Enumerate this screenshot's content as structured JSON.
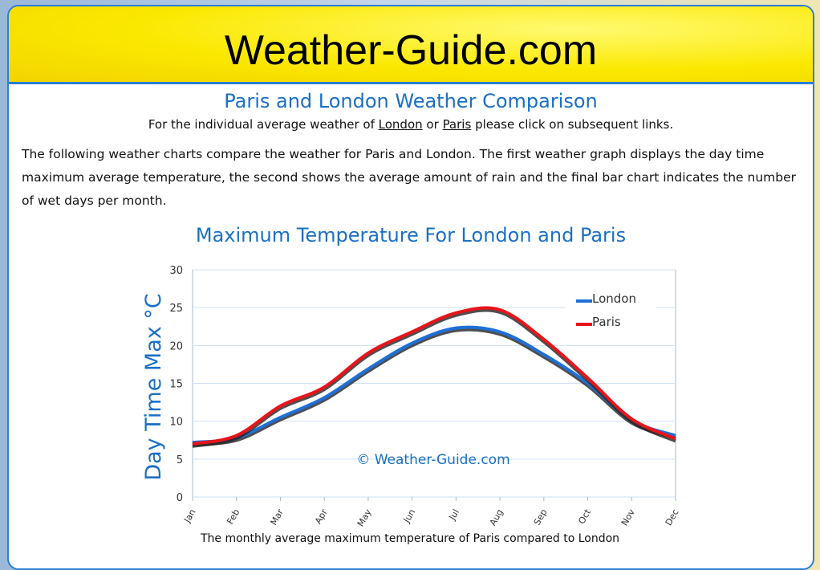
{
  "header": {
    "title": "Weather-Guide.com"
  },
  "page": {
    "heading": "Paris and London Weather Comparison",
    "intro": [
      "For the individual average weather of",
      "London",
      "or",
      "Paris",
      "please click on subsequent links."
    ],
    "paragraph": "The following weather charts compare the weather for Paris and London. The first weather graph displays the day time maximum average temperature, the second shows the average amount of rain and the final bar chart indicates the number of wet days per month.",
    "chart_heading": "Maximum Temperature For London and Paris"
  },
  "chart_data": {
    "type": "line",
    "y_label": "Day Time Max °C",
    "watermark": "© Weather-Guide.com",
    "caption": "The monthly average maximum temperature of Paris compared to London",
    "categories": [
      "Jan",
      "Feb",
      "Mar",
      "Apr",
      "May",
      "Jun",
      "Jul",
      "Aug",
      "Sep",
      "Oct",
      "Nov",
      "Dec"
    ],
    "series": [
      {
        "name": "London",
        "color": "#1f6fd6",
        "values": [
          7.2,
          7.8,
          10.5,
          13.1,
          16.9,
          20.3,
          22.3,
          21.8,
          18.8,
          15.0,
          10.1,
          8.1
        ]
      },
      {
        "name": "Paris",
        "color": "#e8141a",
        "values": [
          7.0,
          8.1,
          12.0,
          14.5,
          19.0,
          21.8,
          24.3,
          24.7,
          20.8,
          15.7,
          10.3,
          7.7
        ]
      }
    ],
    "ylim": [
      0,
      30
    ],
    "yticks": [
      0,
      5,
      10,
      15,
      20,
      25,
      30
    ],
    "grid": true,
    "legend": "top-right"
  }
}
